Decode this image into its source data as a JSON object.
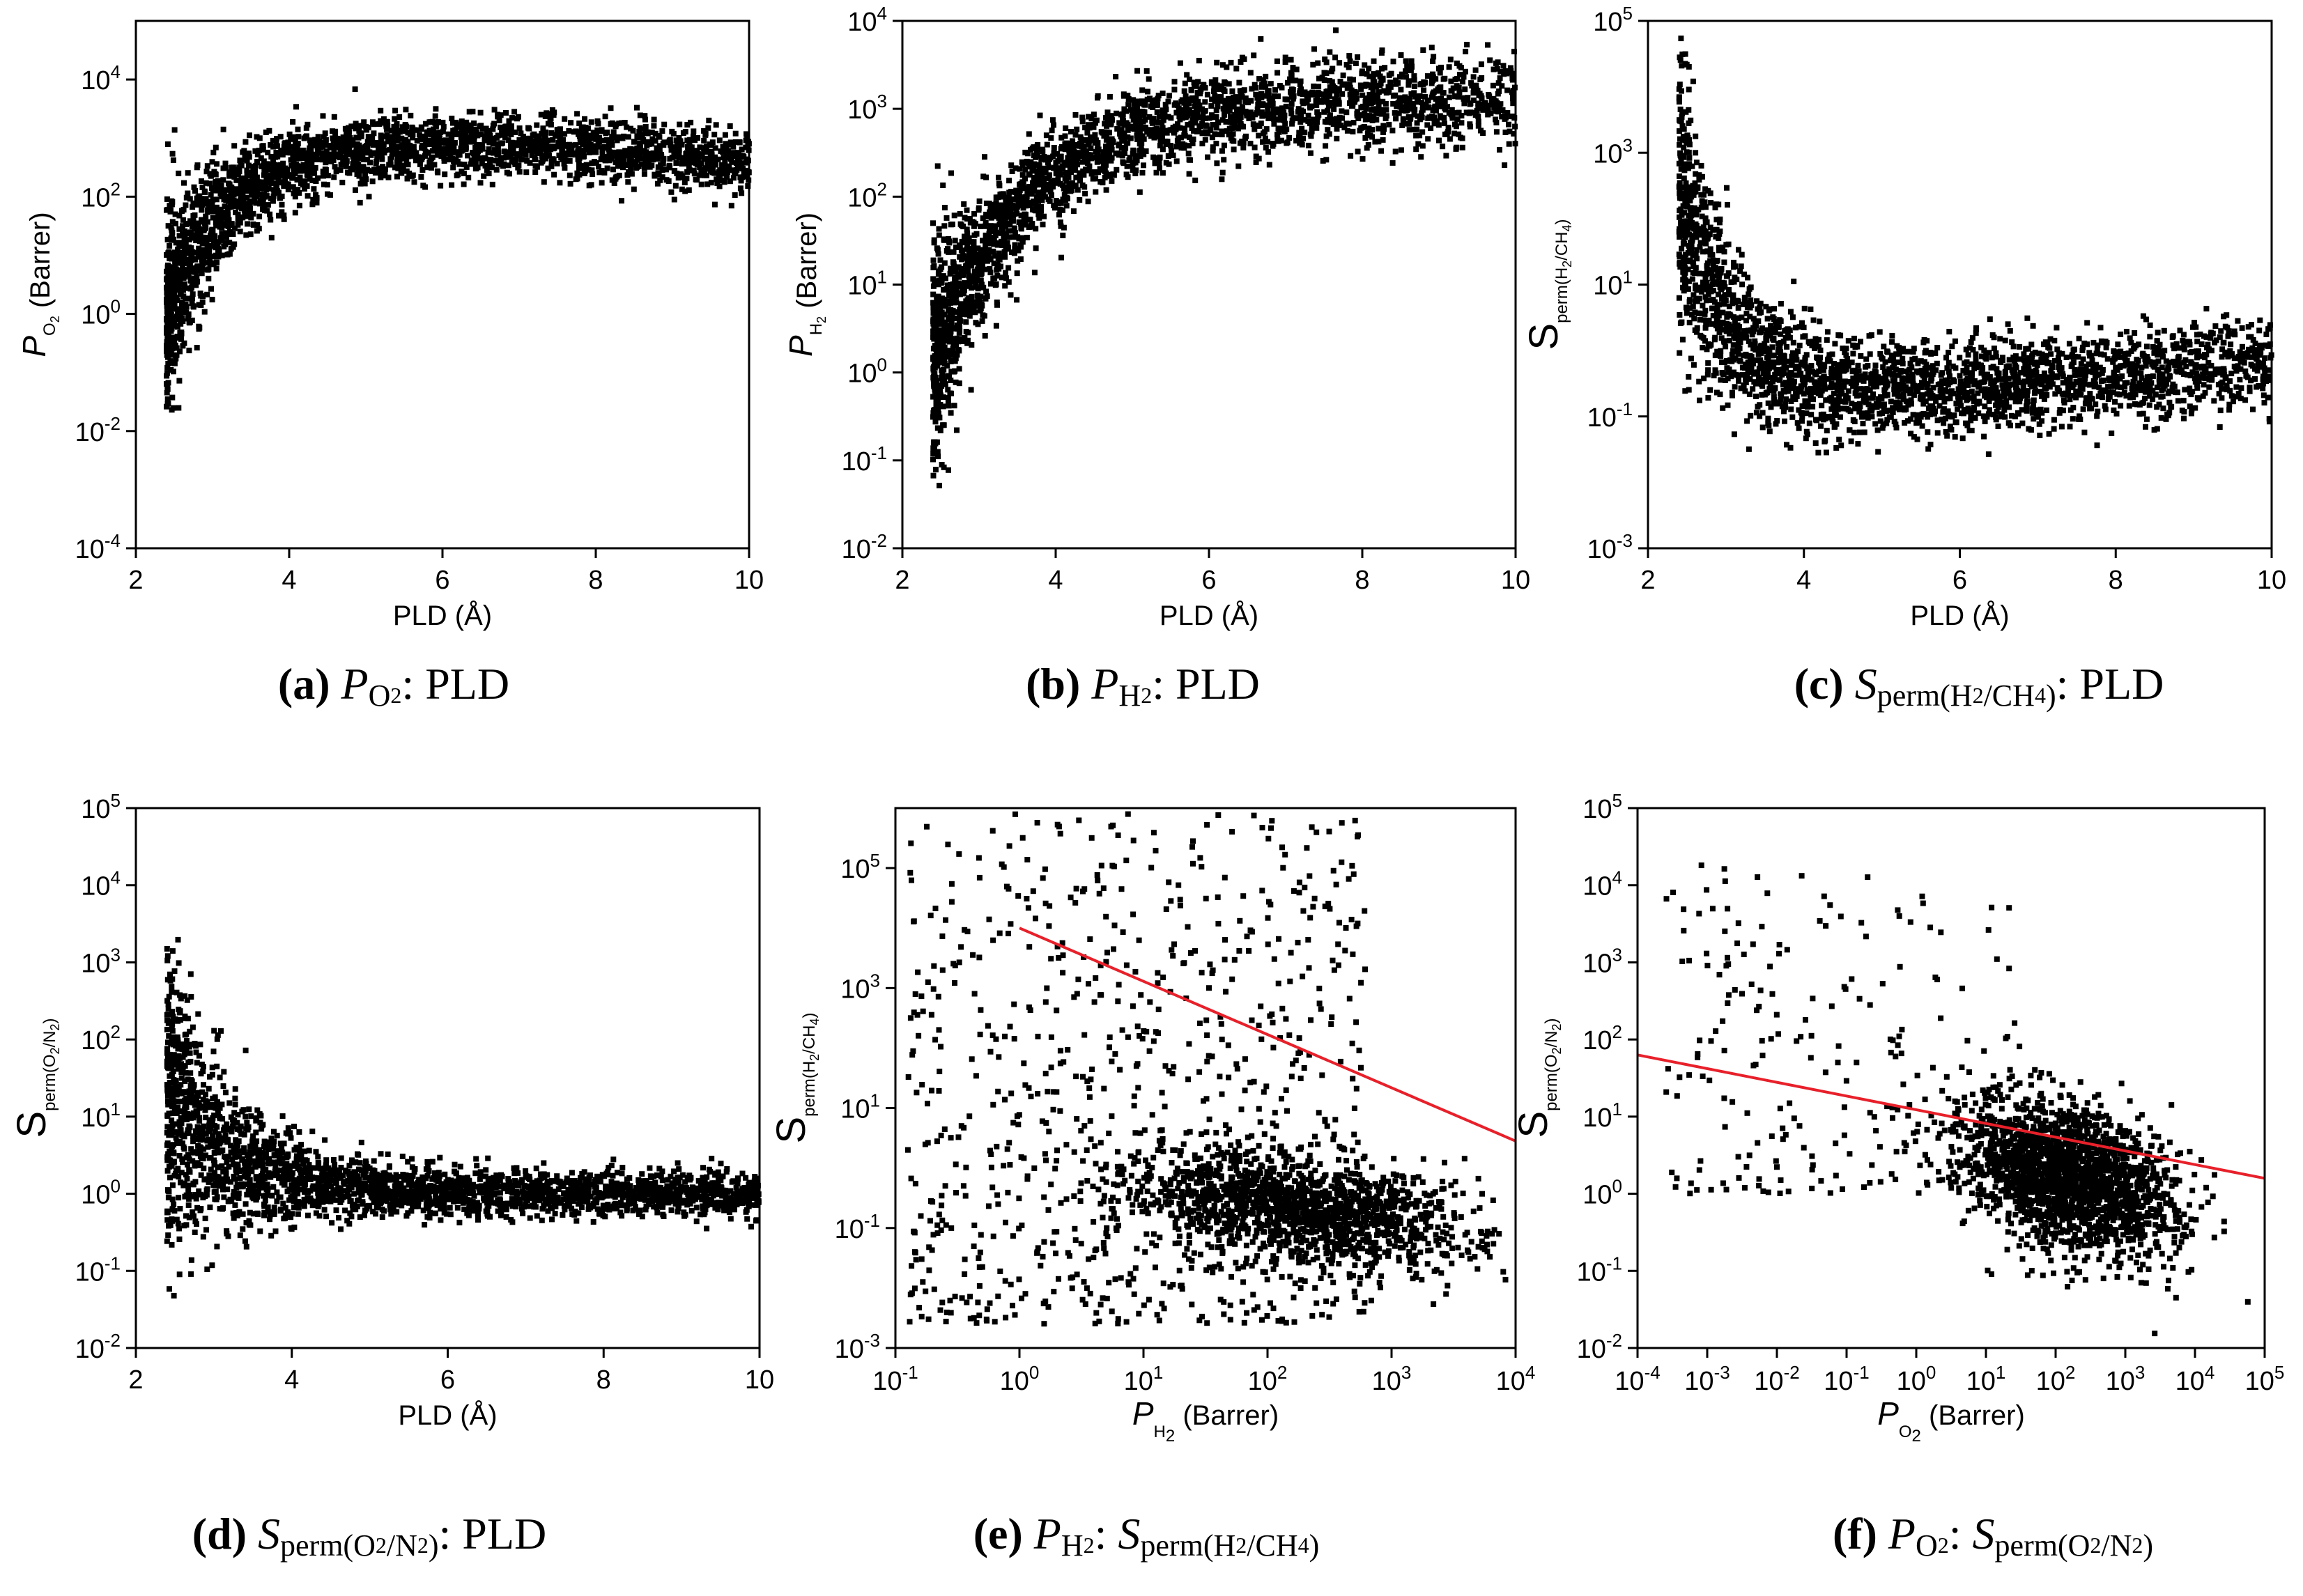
{
  "figure": {
    "captions": [
      {
        "letter": "(a)",
        "var": "P",
        "sub": "O",
        "subsub": "2",
        "tail": ": PLD"
      },
      {
        "letter": "(b)",
        "var": "P",
        "sub": "H",
        "subsub": "2",
        "tail": ": PLD"
      },
      {
        "letter": "(c)",
        "var": "S",
        "sub": "perm(H",
        "subsub": "2",
        "sub2": "/CH",
        "subsub2": "4",
        "sub3": ")",
        "tail": ": PLD"
      },
      {
        "letter": "(d)",
        "var": "S",
        "sub": "perm(O",
        "subsub": "2",
        "sub2": "/N",
        "subsub2": "2",
        "sub3": ")",
        "tail": ": PLD"
      },
      {
        "letter": "(e)",
        "var": "P",
        "sub": "H",
        "subsub": "2",
        "mid": ": ",
        "var2": "S",
        "sub4": "perm(H",
        "subsub4": "2",
        "sub5": "/CH",
        "subsub5": "4",
        "sub6": ")",
        "tail": ""
      },
      {
        "letter": "(f)",
        "var": "P",
        "sub": "O",
        "subsub": "2",
        "mid": ": ",
        "var2": "S",
        "sub4": "perm(O",
        "subsub4": "2",
        "sub5": "/N",
        "subsub5": "2",
        "sub6": ")",
        "tail": ""
      }
    ]
  },
  "chart_data": [
    {
      "id": "a",
      "type": "scatter",
      "xlabel": "PLD (Å)",
      "ylabel_var": "P",
      "ylabel_sub": "O",
      "ylabel_subsub": "2",
      "ylabel_tail": " (Barrer)",
      "xscale": "linear",
      "yscale": "log",
      "xlim": [
        2,
        10
      ],
      "ylim_exp": [
        -4,
        5
      ],
      "xticks": [
        2,
        4,
        6,
        8,
        10
      ],
      "yticks_exp": [
        -4,
        -2,
        0,
        2,
        4
      ],
      "point_seed": 11,
      "point_count": 2600,
      "trend": {
        "kind": "plateau",
        "x_onset": 2.4,
        "y_start_exp": 0.0,
        "y_plateau_exp": 2.9,
        "rise": 0.8,
        "spread_exp_low": 1.6,
        "spread_exp_high": 0.5,
        "tail_drop": 0.3
      }
    },
    {
      "id": "b",
      "type": "scatter",
      "xlabel": "PLD (Å)",
      "ylabel_var": "P",
      "ylabel_sub": "H",
      "ylabel_subsub": "2",
      "ylabel_tail": " (Barrer)",
      "xscale": "linear",
      "yscale": "log",
      "xlim": [
        2,
        10
      ],
      "ylim_exp": [
        -2,
        4
      ],
      "xticks": [
        2,
        4,
        6,
        8,
        10
      ],
      "yticks_exp": [
        -2,
        -1,
        0,
        1,
        2,
        3,
        4
      ],
      "point_seed": 23,
      "point_count": 2600,
      "trend": {
        "kind": "plateau",
        "x_onset": 2.4,
        "y_start_exp": 0.2,
        "y_plateau_exp": 3.1,
        "rise": 1.3,
        "spread_exp_low": 1.2,
        "spread_exp_high": 0.45,
        "tail_drop": 0.0
      }
    },
    {
      "id": "c",
      "type": "scatter",
      "xlabel": "PLD (Å)",
      "ylabel_var": "S",
      "ylabel_sub": "perm(H",
      "ylabel_subsub": "2",
      "ylabel_sub2": "/CH",
      "ylabel_subsub2": "4",
      "ylabel_sub3": ")",
      "ylabel_tail": "",
      "xscale": "linear",
      "yscale": "log",
      "xlim": [
        2,
        10
      ],
      "ylim_exp": [
        -3,
        5
      ],
      "xticks": [
        2,
        4,
        6,
        8,
        10
      ],
      "yticks_exp": [
        -3,
        -1,
        1,
        3,
        5
      ],
      "point_seed": 37,
      "point_count": 2600,
      "trend": {
        "kind": "decay",
        "x_onset": 2.4,
        "y_peak_exp": 2.5,
        "y_floor_exp": -0.7,
        "decay": 1.4,
        "spread_exp_low": 0.5,
        "spread_exp_high": 1.6,
        "late_rise": 0.09
      }
    },
    {
      "id": "d",
      "type": "scatter",
      "xlabel": "PLD (Å)",
      "ylabel_var": "S",
      "ylabel_sub": "perm(O",
      "ylabel_subsub": "2",
      "ylabel_sub2": "/N",
      "ylabel_subsub2": "2",
      "ylabel_sub3": ")",
      "ylabel_tail": "",
      "xscale": "linear",
      "yscale": "log",
      "xlim": [
        2,
        10
      ],
      "ylim_exp": [
        -2,
        5
      ],
      "xticks": [
        2,
        4,
        6,
        8,
        10
      ],
      "yticks_exp": [
        -2,
        -1,
        0,
        1,
        2,
        3,
        4,
        5
      ],
      "point_seed": 41,
      "point_count": 2600,
      "trend": {
        "kind": "decay",
        "x_onset": 2.4,
        "y_peak_exp": 1.2,
        "y_floor_exp": 0.0,
        "decay": 2.0,
        "spread_exp_low": 0.2,
        "spread_exp_high": 1.4,
        "late_rise": 0.0
      }
    },
    {
      "id": "e",
      "type": "scatter",
      "xlabel_var": "P",
      "xlabel_sub": "H",
      "xlabel_subsub": "2",
      "xlabel_tail": " (Barrer)",
      "ylabel_var": "S",
      "ylabel_sub": "perm(H",
      "ylabel_subsub": "2",
      "ylabel_sub2": "/CH",
      "ylabel_subsub2": "4",
      "ylabel_sub3": ")",
      "ylabel_tail": "",
      "xscale": "log",
      "yscale": "log",
      "xlim_exp": [
        -1,
        4
      ],
      "ylim_exp": [
        -3,
        6
      ],
      "xticks_exp": [
        -1,
        0,
        1,
        2,
        3,
        4
      ],
      "yticks_exp": [
        -3,
        -1,
        1,
        3,
        5
      ],
      "point_seed": 53,
      "point_count": 2300,
      "cloud": {
        "cx": 2.3,
        "cy": -0.7,
        "sx": 0.7,
        "sy": 0.45,
        "sparse_frac": 0.35,
        "sparse_xmin": -0.9,
        "sparse_xmax": 2.8,
        "sparse_ymin": -2.6,
        "sparse_ymax": 5.9
      },
      "upper_bound": {
        "x_exp": [
          0,
          4
        ],
        "y_exp": [
          4,
          0.45
        ]
      }
    },
    {
      "id": "f",
      "type": "scatter",
      "xlabel_var": "P",
      "xlabel_sub": "O",
      "xlabel_subsub": "2",
      "xlabel_tail": " (Barrer)",
      "ylabel_var": "S",
      "ylabel_sub": "perm(O",
      "ylabel_subsub": "2",
      "ylabel_sub2": "/N",
      "ylabel_subsub2": "2",
      "ylabel_sub3": ")",
      "ylabel_tail": "",
      "xscale": "log",
      "yscale": "log",
      "xlim_exp": [
        -4,
        5
      ],
      "ylim_exp": [
        -2,
        5
      ],
      "xticks_exp": [
        -4,
        -3,
        -2,
        -1,
        0,
        1,
        2,
        3,
        4,
        5
      ],
      "yticks_exp": [
        -2,
        -1,
        0,
        1,
        2,
        3,
        4,
        5
      ],
      "point_seed": 67,
      "point_count": 2200,
      "cloud": {
        "cx": 2.2,
        "cy": 0.2,
        "sx": 0.75,
        "sy": 0.45,
        "sparse_frac": 0.1,
        "sparse_xmin": -3.6,
        "sparse_xmax": 1.5,
        "sparse_ymin": 0.0,
        "sparse_ymax": 4.3
      },
      "upper_bound": {
        "x_exp": [
          -4,
          5
        ],
        "y_exp": [
          1.8,
          0.2
        ]
      }
    }
  ]
}
